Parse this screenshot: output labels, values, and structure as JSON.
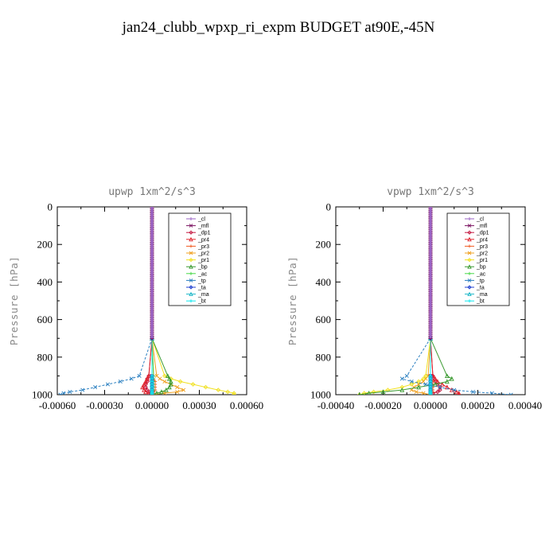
{
  "figure": {
    "title": "jan24_clubb_wpxp_ri_expm  BUDGET at90E,-45N"
  },
  "chart_data": [
    {
      "type": "line",
      "title": "upwp   1xm^2/s^3",
      "ylabel": "Pressure [hPa]",
      "xlim": [
        -0.0006,
        0.0006
      ],
      "ylim": [
        1000,
        0
      ],
      "xticks": [
        "-0.00060",
        "-0.00030",
        "0.00000",
        "0.00030",
        "0.00060"
      ],
      "yticks": [
        "0",
        "200",
        "400",
        "600",
        "800",
        "1000"
      ],
      "legend_position": "top-right",
      "pressure": [
        900,
        915,
        930,
        945,
        960,
        975,
        985,
        992,
        1000
      ],
      "profile_top": 700,
      "series": [
        {
          "name": "_cl",
          "color": "#9a63c4",
          "values": [
            0,
            0,
            0,
            0,
            0,
            0,
            0,
            0,
            0
          ]
        },
        {
          "name": "_mfl",
          "color": "#7a1260",
          "values": [
            0,
            0,
            0,
            0,
            0,
            0,
            0,
            0,
            0
          ]
        },
        {
          "name": "_dp1",
          "color": "#c41840",
          "values": [
            -2e-05,
            -3e-05,
            -3e-05,
            -4e-05,
            -4e-05,
            -3e-05,
            -2e-05,
            -1e-05,
            0
          ]
        },
        {
          "name": "_pr4",
          "color": "#e0242e",
          "values": [
            -2e-05,
            -3e-05,
            -4e-05,
            -5e-05,
            -6e-05,
            -5e-05,
            -4e-05,
            -2e-05,
            0
          ]
        },
        {
          "name": "_pr3",
          "color": "#f05a20",
          "values": [
            1e-05,
            1e-05,
            2e-05,
            2e-05,
            2e-05,
            2e-05,
            1e-05,
            1e-05,
            0
          ]
        },
        {
          "name": "_pr2",
          "color": "#f0a020",
          "values": [
            3e-05,
            5e-05,
            8e-05,
            0.00012,
            0.00016,
            0.0002,
            0.00016,
            8e-05,
            0
          ]
        },
        {
          "name": "_pr1",
          "color": "#f0e020",
          "values": [
            8e-05,
            0.00012,
            0.00018,
            0.00026,
            0.00034,
            0.00042,
            0.00048,
            0.00052,
            0.00052
          ]
        },
        {
          "name": "_bp",
          "color": "#3a9a30",
          "values": [
            0.0001,
            0.00011,
            0.00012,
            0.00012,
            0.00011,
            9e-05,
            6e-05,
            3e-05,
            0
          ]
        },
        {
          "name": "_ac",
          "color": "#48d848",
          "values": [
            1e-05,
            1e-05,
            1e-05,
            1e-05,
            1e-05,
            1e-05,
            0,
            0,
            0
          ]
        },
        {
          "name": "_tp",
          "color": "#2a7fc0",
          "values": [
            -8e-05,
            -0.00013,
            -0.0002,
            -0.00028,
            -0.00036,
            -0.00044,
            -0.00052,
            -0.00056,
            -0.00058
          ]
        },
        {
          "name": "_ta",
          "color": "#2040d0",
          "values": [
            0,
            0,
            0,
            0,
            0,
            0,
            0,
            0,
            0
          ]
        },
        {
          "name": "_ma",
          "color": "#20b8c8",
          "values": [
            0,
            0,
            0,
            0,
            0,
            0,
            0,
            0,
            0
          ]
        },
        {
          "name": "_bt",
          "color": "#10e8f0",
          "values": [
            0,
            0,
            0,
            0,
            0,
            0,
            0,
            0,
            0
          ]
        }
      ]
    },
    {
      "type": "line",
      "title": "vpwp   1xm^2/s^3",
      "ylabel": "Pressure [hPa]",
      "xlim": [
        -0.0004,
        0.0004
      ],
      "ylim": [
        1000,
        0
      ],
      "xticks": [
        "-0.00040",
        "-0.00020",
        "0.00000",
        "0.00020",
        "0.00040"
      ],
      "yticks": [
        "0",
        "200",
        "400",
        "600",
        "800",
        "1000"
      ],
      "legend_position": "top-right",
      "pressure": [
        900,
        915,
        930,
        945,
        960,
        975,
        985,
        992,
        1000
      ],
      "profile_top": 700,
      "series": [
        {
          "name": "_cl",
          "color": "#9a63c4",
          "values": [
            0,
            0,
            0,
            0,
            0,
            0,
            0,
            0,
            0
          ]
        },
        {
          "name": "_mfl",
          "color": "#7a1260",
          "values": [
            0,
            0,
            0,
            0,
            0,
            0,
            0,
            0,
            0
          ]
        },
        {
          "name": "_dp1",
          "color": "#c41840",
          "values": [
            1e-05,
            1e-05,
            2e-05,
            3e-05,
            4e-05,
            4e-05,
            3e-05,
            1e-05,
            0
          ]
        },
        {
          "name": "_pr4",
          "color": "#e0242e",
          "values": [
            1e-05,
            2e-05,
            3e-05,
            5e-05,
            7e-05,
            9e-05,
            0.00011,
            0.00012,
            0.00012
          ]
        },
        {
          "name": "_pr3",
          "color": "#f05a20",
          "values": [
            0,
            0,
            1e-05,
            1e-05,
            1e-05,
            1e-05,
            1e-05,
            0,
            0
          ]
        },
        {
          "name": "_pr2",
          "color": "#f0a020",
          "values": [
            -1e-05,
            -2e-05,
            -3e-05,
            -5e-05,
            -7e-05,
            -8e-05,
            -6e-05,
            -3e-05,
            0
          ]
        },
        {
          "name": "_pr1",
          "color": "#f0e020",
          "values": [
            -2e-05,
            -3e-05,
            -5e-05,
            -8e-05,
            -0.00012,
            -0.00018,
            -0.00024,
            -0.00028,
            -0.0003
          ]
        },
        {
          "name": "_bp",
          "color": "#3a9a30",
          "values": [
            7e-05,
            9e-05,
            7e-05,
            2e-05,
            -5e-05,
            -0.00012,
            -0.0002,
            -0.00026,
            -0.0003
          ]
        },
        {
          "name": "_ac",
          "color": "#48d848",
          "values": [
            0,
            0,
            0,
            0,
            0,
            0,
            0,
            0,
            0
          ]
        },
        {
          "name": "_tp",
          "color": "#2a7fc0",
          "values": [
            -0.0001,
            -0.00012,
            -8e-05,
            -2e-05,
            4e-05,
            0.0001,
            0.00018,
            0.00026,
            0.00034
          ]
        },
        {
          "name": "_ta",
          "color": "#2040d0",
          "values": [
            0,
            0,
            0,
            0,
            0,
            0,
            0,
            0,
            0
          ]
        },
        {
          "name": "_ma",
          "color": "#20b8c8",
          "values": [
            0,
            0,
            0,
            0,
            0,
            0,
            0,
            0,
            0
          ]
        },
        {
          "name": "_bt",
          "color": "#10e8f0",
          "values": [
            0,
            0,
            0,
            0,
            0,
            0,
            0,
            0,
            0
          ]
        }
      ]
    }
  ]
}
